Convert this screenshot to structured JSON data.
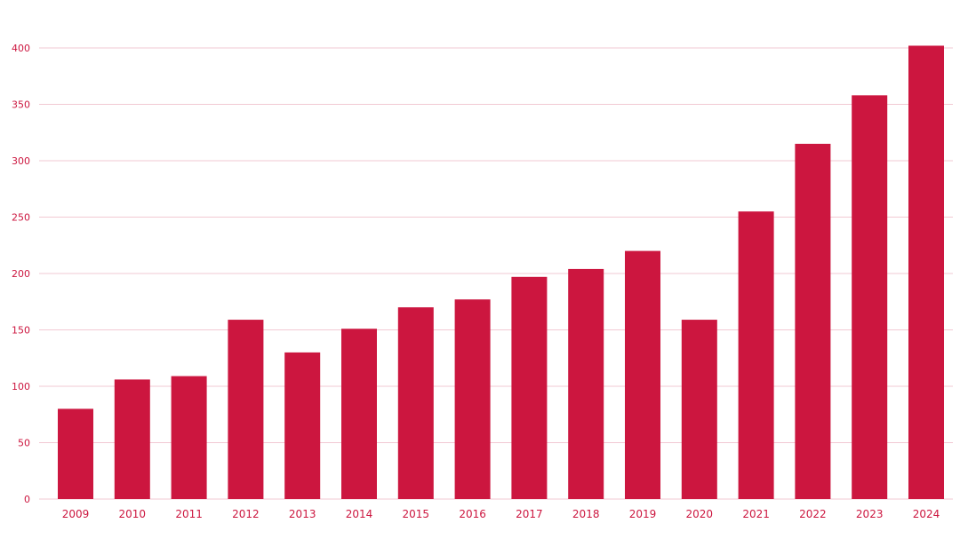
{
  "chart_data": {
    "type": "bar",
    "categories": [
      "2009",
      "2010",
      "2011",
      "2012",
      "2013",
      "2014",
      "2015",
      "2016",
      "2017",
      "2018",
      "2019",
      "2020",
      "2021",
      "2022",
      "2023",
      "2024"
    ],
    "values": [
      80,
      106,
      109,
      159,
      130,
      151,
      170,
      177,
      197,
      204,
      220,
      159,
      255,
      315,
      358,
      402
    ],
    "title": "",
    "xlabel": "",
    "ylabel": "",
    "ylim": [
      0,
      400
    ],
    "yticks": [
      0,
      50,
      100,
      150,
      200,
      250,
      300,
      350,
      400
    ],
    "grid": true,
    "legend": "none",
    "colors": {
      "bar": "#cc163f",
      "label": "#cc163f",
      "grid": "#f2c9d3"
    }
  }
}
